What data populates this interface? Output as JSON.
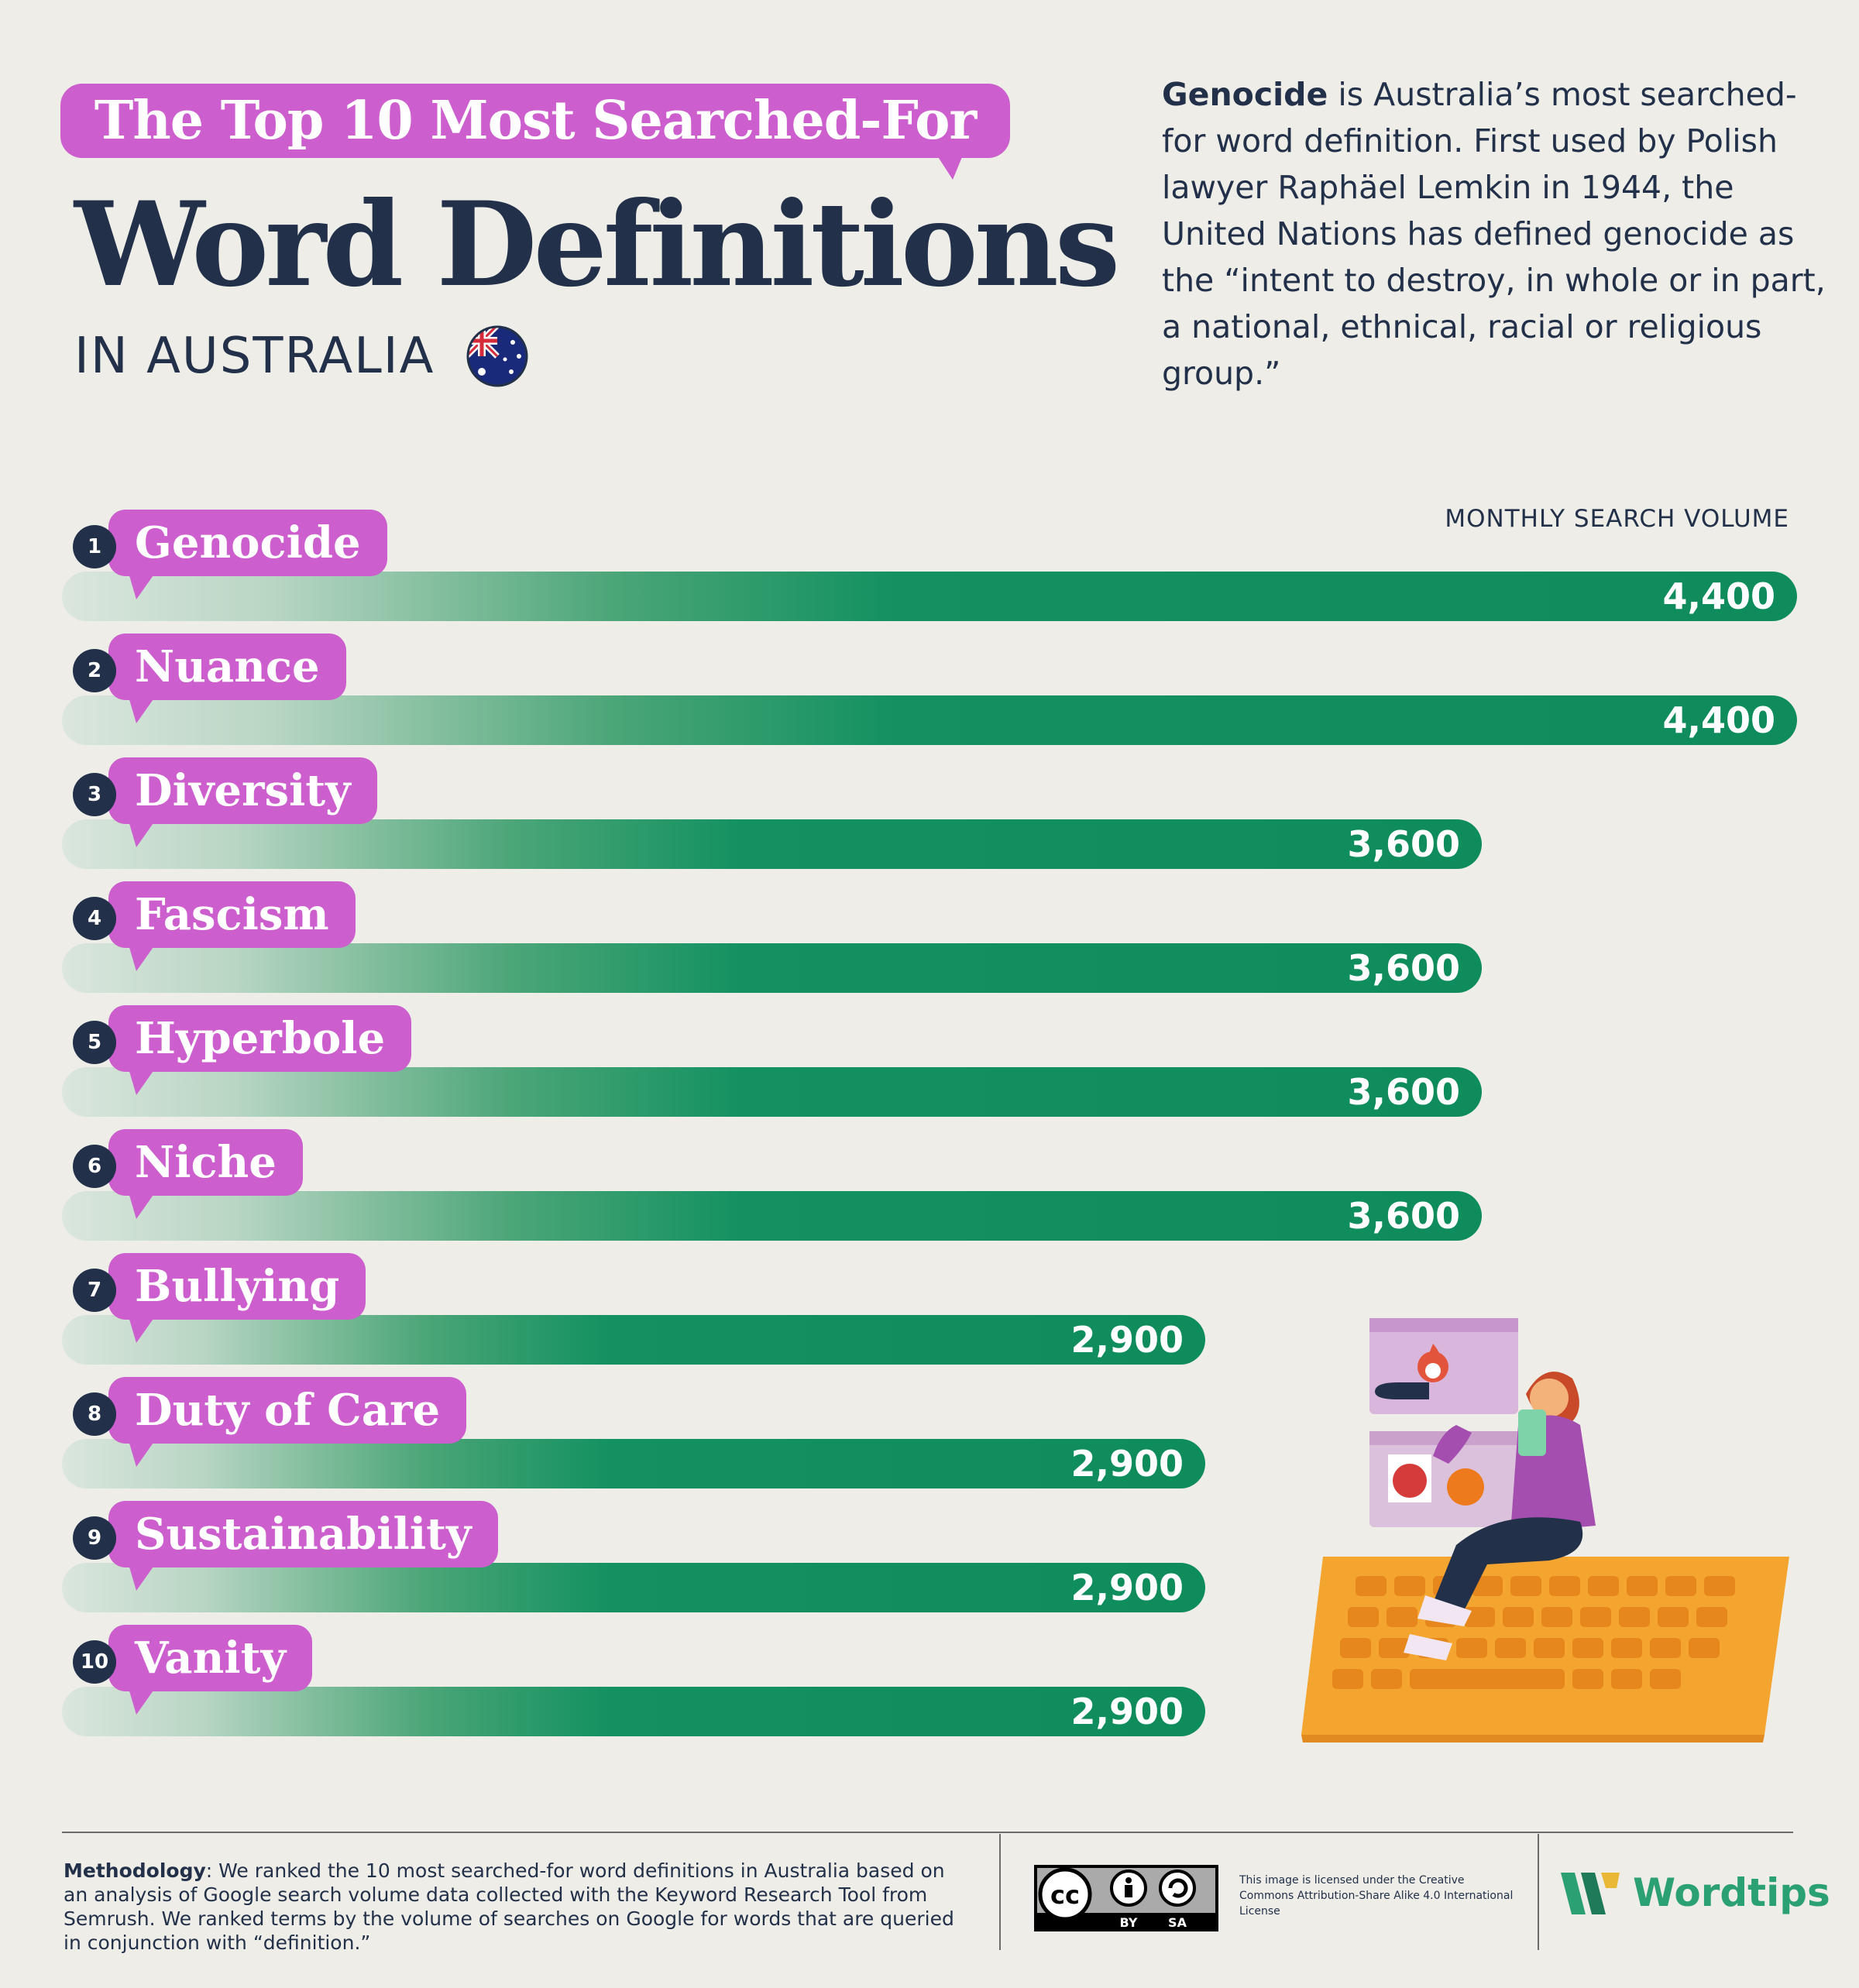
{
  "header": {
    "title_small": "The Top 10 Most Searched-For",
    "title_big": "Word Definitions",
    "subtitle": "IN AUSTRALIA"
  },
  "intro": {
    "lead": "Genocide",
    "text": " is Australia’s most searched-for word definition. First used by Polish lawyer Raphäel Lemkin in 1944, the United Nations has defined genocide as the “intent to destroy, in whole or in part, a national, ethnical, racial or religious group.”"
  },
  "colors": {
    "accent_purple": "#cc5fcd",
    "bar_green": "#0f8c5c",
    "navy": "#223049",
    "background": "#eeede7"
  },
  "chart_data": {
    "type": "bar",
    "orientation": "horizontal",
    "value_label": "MONTHLY SEARCH VOLUME",
    "ranks": [
      "1",
      "2",
      "3",
      "4",
      "5",
      "6",
      "7",
      "8",
      "9",
      "10"
    ],
    "categories": [
      "Genocide",
      "Nuance",
      "Diversity",
      "Fascism",
      "Hyperbole",
      "Niche",
      "Bullying",
      "Duty of Care",
      "Sustainability",
      "Vanity"
    ],
    "values": [
      4400,
      4400,
      3600,
      3600,
      3600,
      3600,
      2900,
      2900,
      2900,
      2900
    ],
    "value_labels": [
      "4,400",
      "4,400",
      "3,600",
      "3,600",
      "3,600",
      "3,600",
      "2,900",
      "2,900",
      "2,900",
      "2,900"
    ],
    "xlim": [
      0,
      4400
    ]
  },
  "footer": {
    "methodology_label": "Methodology",
    "methodology_text": ": We ranked the 10 most searched-for word definitions in Australia based on an analysis of Google search volume data collected with the Keyword Research Tool from Semrush. We ranked terms by the volume of searches on Google for words that are queried in conjunction with “definition.”",
    "cc_by": "BY",
    "cc_sa": "SA",
    "license_text": "This image is licensed under the Creative Commons Attribution-Share Alike 4.0 International License",
    "brand": "Wordtips"
  }
}
